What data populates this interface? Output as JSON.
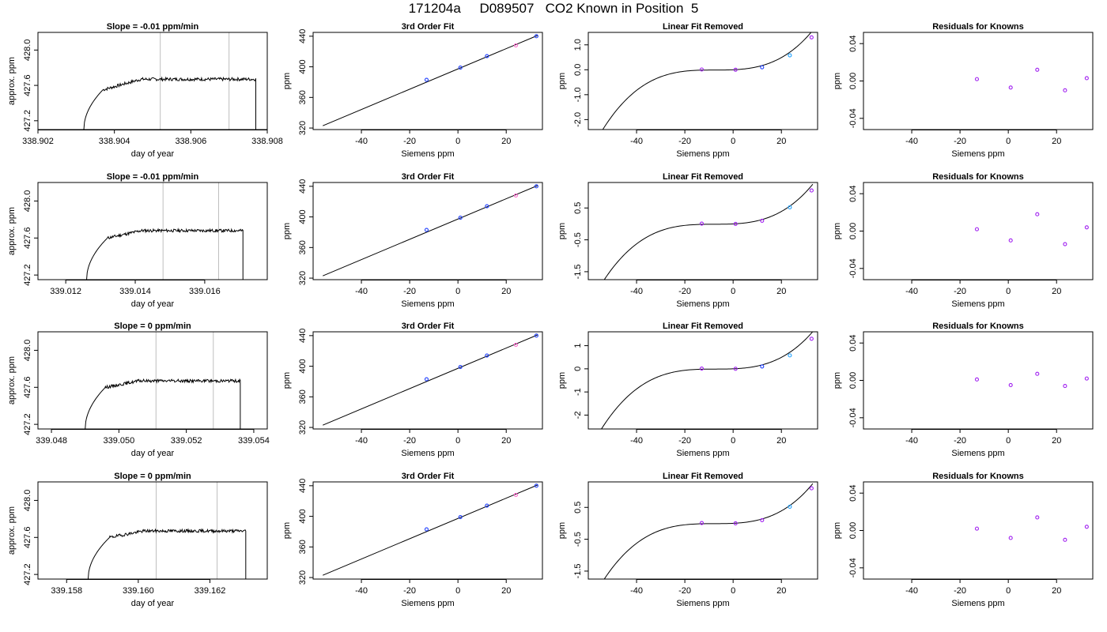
{
  "title": "171204a     D089507   CO2 Known in Position  5",
  "colors": {
    "point_blue": "#1f3fff",
    "point_purple": "#a020f0",
    "point_cyan": "#1ea0ff",
    "point_pink": "#ff66cc",
    "vline": "#bebebe",
    "line": "#000000"
  },
  "chart_data": [
    {
      "row": 0,
      "col": 0,
      "type": "line",
      "title": "Slope =  -0.01  ppm/min",
      "xlabel": "day of year",
      "ylabel": "approx. ppm",
      "xlim": [
        338.902,
        338.908
      ],
      "ylim": [
        427.1,
        428.2
      ],
      "xticks": [
        338.902,
        338.904,
        338.906,
        338.908
      ],
      "xtick_labels": [
        "338.902",
        "338.904",
        "338.906",
        "338.908"
      ],
      "yticks": [
        427.2,
        427.6,
        428.0
      ],
      "ytick_labels": [
        "427.2",
        "427.6",
        "428.0"
      ],
      "vlines": [
        338.9052,
        338.907
      ],
      "trace": {
        "start": 338.9032,
        "rise_end": 338.9037,
        "base": 427.1,
        "plateau_start": 427.55,
        "level": 427.67,
        "noise": 0.018,
        "end": 338.9077
      },
      "legend": false
    },
    {
      "row": 0,
      "col": 1,
      "type": "scatter",
      "title": "3rd Order Fit",
      "xlabel": "Siemens ppm",
      "ylabel": "ppm",
      "xlim": [
        -60,
        35
      ],
      "ylim": [
        318,
        445
      ],
      "xticks": [
        -40,
        -20,
        0,
        20
      ],
      "xtick_labels": [
        "-40",
        "-20",
        "0",
        "20"
      ],
      "yticks": [
        320,
        360,
        400,
        440
      ],
      "ytick_labels": [
        "320",
        "360",
        "400",
        "440"
      ],
      "curve": {
        "type": "linear",
        "x": [
          -56,
          33
        ],
        "y": [
          323,
          441
        ]
      },
      "points": [
        {
          "x": -13,
          "y": 383,
          "color": "point_blue"
        },
        {
          "x": 1,
          "y": 399,
          "color": "point_blue"
        },
        {
          "x": 12,
          "y": 414,
          "color": "point_blue"
        },
        {
          "x": 24,
          "y": 428,
          "color": "point_pink"
        },
        {
          "x": 32.5,
          "y": 440,
          "color": "point_blue"
        }
      ]
    },
    {
      "row": 0,
      "col": 2,
      "type": "scatter",
      "title": "Linear Fit Removed",
      "xlabel": "Siemens ppm",
      "ylabel": "ppm",
      "xlim": [
        -60,
        35
      ],
      "ylim": [
        -2.4,
        1.5
      ],
      "xticks": [
        -40,
        -20,
        0,
        20
      ],
      "xtick_labels": [
        "-40",
        "-20",
        "0",
        "20"
      ],
      "yticks": [
        -2.0,
        -1.0,
        0.0,
        1.0
      ],
      "ytick_labels": [
        "-2.0",
        "-1.0",
        "0.0",
        "1.0"
      ],
      "curve": {
        "type": "cubic",
        "x0": -56,
        "x1": 33,
        "coef": [
          0,
          0.0042,
          0.00054,
          2.38e-05
        ]
      },
      "points": [
        {
          "x": -13,
          "y": 0.01,
          "color": "point_purple"
        },
        {
          "x": 1,
          "y": 0.0,
          "color": "point_purple"
        },
        {
          "x": 12,
          "y": 0.1,
          "color": "point_blue"
        },
        {
          "x": 23.5,
          "y": 0.58,
          "color": "point_cyan"
        },
        {
          "x": 32.5,
          "y": 1.3,
          "color": "point_purple"
        }
      ]
    },
    {
      "row": 0,
      "col": 3,
      "type": "scatter",
      "title": "Residuals for Knowns",
      "xlabel": "Siemens ppm",
      "ylabel": "ppm",
      "xlim": [
        -60,
        35
      ],
      "ylim": [
        -0.052,
        0.052
      ],
      "xticks": [
        -40,
        -20,
        0,
        20
      ],
      "xtick_labels": [
        "-40",
        "-20",
        "0",
        "20"
      ],
      "yticks": [
        -0.04,
        0.0,
        0.04
      ],
      "ytick_labels": [
        "-0.04",
        "0.00",
        "0.04"
      ],
      "points": [
        {
          "x": -13,
          "y": 0.002,
          "color": "point_purple"
        },
        {
          "x": 1,
          "y": -0.007,
          "color": "point_purple"
        },
        {
          "x": 12,
          "y": 0.012,
          "color": "point_purple"
        },
        {
          "x": 23.5,
          "y": -0.01,
          "color": "point_purple"
        },
        {
          "x": 32.5,
          "y": 0.003,
          "color": "point_purple"
        }
      ]
    },
    {
      "row": 1,
      "col": 0,
      "type": "line",
      "title": "Slope =  -0.01  ppm/min",
      "xlabel": "day of year",
      "ylabel": "approx. ppm",
      "xlim": [
        339.0112,
        339.0178
      ],
      "ylim": [
        427.15,
        428.2
      ],
      "xticks": [
        339.012,
        339.014,
        339.016
      ],
      "xtick_labels": [
        "339.012",
        "339.014",
        "339.016"
      ],
      "yticks": [
        427.2,
        427.6,
        428.0
      ],
      "ytick_labels": [
        "427.2",
        "427.6",
        "428.0"
      ],
      "vlines": [
        339.0148,
        339.0164
      ],
      "trace": {
        "start": 339.0126,
        "rise_end": 339.0132,
        "base": 427.15,
        "plateau_start": 427.6,
        "level": 427.68,
        "noise": 0.016,
        "end": 339.0171
      },
      "legend": false
    },
    {
      "row": 1,
      "col": 1,
      "type": "scatter",
      "title": "3rd Order Fit",
      "xlabel": "Siemens ppm",
      "ylabel": "ppm",
      "xlim": [
        -60,
        35
      ],
      "ylim": [
        318,
        445
      ],
      "xticks": [
        -40,
        -20,
        0,
        20
      ],
      "xtick_labels": [
        "-40",
        "-20",
        "0",
        "20"
      ],
      "yticks": [
        320,
        360,
        400,
        440
      ],
      "ytick_labels": [
        "320",
        "360",
        "400",
        "440"
      ],
      "curve": {
        "type": "linear",
        "x": [
          -56,
          33
        ],
        "y": [
          323,
          441
        ]
      },
      "points": [
        {
          "x": -13,
          "y": 383,
          "color": "point_blue"
        },
        {
          "x": 1,
          "y": 399,
          "color": "point_blue"
        },
        {
          "x": 12,
          "y": 414,
          "color": "point_blue"
        },
        {
          "x": 24,
          "y": 428,
          "color": "point_pink"
        },
        {
          "x": 32.5,
          "y": 440,
          "color": "point_blue"
        }
      ]
    },
    {
      "row": 1,
      "col": 2,
      "type": "scatter",
      "title": "Linear Fit Removed",
      "xlabel": "Siemens ppm",
      "ylabel": "ppm",
      "xlim": [
        -60,
        35
      ],
      "ylim": [
        -1.75,
        1.3
      ],
      "xticks": [
        -40,
        -20,
        0,
        20
      ],
      "xtick_labels": [
        "-40",
        "-20",
        "0",
        "20"
      ],
      "yticks": [
        -1.5,
        -0.5,
        0.5
      ],
      "ytick_labels": [
        "-1.5",
        "-0.5",
        "0.5"
      ],
      "curve": {
        "type": "cubic",
        "x0": -56,
        "x1": 33,
        "coef": [
          0,
          0.0036,
          0.00043,
          1.83e-05
        ]
      },
      "points": [
        {
          "x": -13,
          "y": 0.01,
          "color": "point_purple"
        },
        {
          "x": 1,
          "y": 0.0,
          "color": "point_purple"
        },
        {
          "x": 12,
          "y": 0.1,
          "color": "point_purple"
        },
        {
          "x": 23.5,
          "y": 0.52,
          "color": "point_cyan"
        },
        {
          "x": 32.5,
          "y": 1.05,
          "color": "point_purple"
        }
      ]
    },
    {
      "row": 1,
      "col": 3,
      "type": "scatter",
      "title": "Residuals for Knowns",
      "xlabel": "Siemens ppm",
      "ylabel": "ppm",
      "xlim": [
        -60,
        35
      ],
      "ylim": [
        -0.052,
        0.052
      ],
      "xticks": [
        -40,
        -20,
        0,
        20
      ],
      "xtick_labels": [
        "-40",
        "-20",
        "0",
        "20"
      ],
      "yticks": [
        -0.04,
        0.0,
        0.04
      ],
      "ytick_labels": [
        "-0.04",
        "0.00",
        "0.04"
      ],
      "points": [
        {
          "x": -13,
          "y": 0.002,
          "color": "point_purple"
        },
        {
          "x": 1,
          "y": -0.01,
          "color": "point_purple"
        },
        {
          "x": 12,
          "y": 0.018,
          "color": "point_purple"
        },
        {
          "x": 23.5,
          "y": -0.014,
          "color": "point_purple"
        },
        {
          "x": 32.5,
          "y": 0.004,
          "color": "point_purple"
        }
      ]
    },
    {
      "row": 2,
      "col": 0,
      "type": "line",
      "title": "Slope =  0  ppm/min",
      "xlabel": "day of year",
      "ylabel": "approx. ppm",
      "xlim": [
        339.0476,
        339.0544
      ],
      "ylim": [
        427.15,
        428.2
      ],
      "xticks": [
        339.048,
        339.05,
        339.052,
        339.054
      ],
      "xtick_labels": [
        "339.048",
        "339.050",
        "339.052",
        "339.054"
      ],
      "yticks": [
        427.2,
        427.6,
        428.0
      ],
      "ytick_labels": [
        "427.2",
        "427.6",
        "428.0"
      ],
      "vlines": [
        339.0511,
        339.0528
      ],
      "trace": {
        "start": 339.049,
        "rise_end": 339.0496,
        "base": 427.15,
        "plateau_start": 427.6,
        "level": 427.67,
        "noise": 0.016,
        "end": 339.0536
      },
      "legend": false
    },
    {
      "row": 2,
      "col": 1,
      "type": "scatter",
      "title": "3rd Order Fit",
      "xlabel": "Siemens ppm",
      "ylabel": "ppm",
      "xlim": [
        -60,
        35
      ],
      "ylim": [
        318,
        445
      ],
      "xticks": [
        -40,
        -20,
        0,
        20
      ],
      "xtick_labels": [
        "-40",
        "-20",
        "0",
        "20"
      ],
      "yticks": [
        320,
        360,
        400,
        440
      ],
      "ytick_labels": [
        "320",
        "360",
        "400",
        "440"
      ],
      "curve": {
        "type": "linear",
        "x": [
          -56,
          33
        ],
        "y": [
          323,
          441
        ]
      },
      "points": [
        {
          "x": -13,
          "y": 383,
          "color": "point_blue"
        },
        {
          "x": 1,
          "y": 399,
          "color": "point_blue"
        },
        {
          "x": 12,
          "y": 414,
          "color": "point_blue"
        },
        {
          "x": 24,
          "y": 428,
          "color": "point_pink"
        },
        {
          "x": 32.5,
          "y": 440,
          "color": "point_blue"
        }
      ]
    },
    {
      "row": 2,
      "col": 2,
      "type": "scatter",
      "title": "Linear Fit Removed",
      "xlabel": "Siemens ppm",
      "ylabel": "ppm",
      "xlim": [
        -60,
        35
      ],
      "ylim": [
        -2.6,
        1.6
      ],
      "xticks": [
        -40,
        -20,
        0,
        20
      ],
      "xtick_labels": [
        "-40",
        "-20",
        "0",
        "20"
      ],
      "yticks": [
        -2,
        -1,
        0,
        1
      ],
      "ytick_labels": [
        "-2",
        "-1",
        "0",
        "1"
      ],
      "curve": {
        "type": "cubic",
        "x0": -56,
        "x1": 33,
        "coef": [
          0,
          0.0042,
          0.00054,
          2.45e-05
        ]
      },
      "points": [
        {
          "x": -13,
          "y": 0.01,
          "color": "point_purple"
        },
        {
          "x": 1,
          "y": 0.0,
          "color": "point_purple"
        },
        {
          "x": 12,
          "y": 0.1,
          "color": "point_blue"
        },
        {
          "x": 23.5,
          "y": 0.58,
          "color": "point_cyan"
        },
        {
          "x": 32.5,
          "y": 1.3,
          "color": "point_purple"
        }
      ]
    },
    {
      "row": 2,
      "col": 3,
      "type": "scatter",
      "title": "Residuals for Knowns",
      "xlabel": "Siemens ppm",
      "ylabel": "ppm",
      "xlim": [
        -60,
        35
      ],
      "ylim": [
        -0.052,
        0.052
      ],
      "xticks": [
        -40,
        -20,
        0,
        20
      ],
      "xtick_labels": [
        "-40",
        "-20",
        "0",
        "20"
      ],
      "yticks": [
        -0.04,
        0.0,
        0.04
      ],
      "ytick_labels": [
        "-0.04",
        "0.00",
        "0.04"
      ],
      "points": [
        {
          "x": -13,
          "y": 0.001,
          "color": "point_purple"
        },
        {
          "x": 1,
          "y": -0.005,
          "color": "point_purple"
        },
        {
          "x": 12,
          "y": 0.007,
          "color": "point_purple"
        },
        {
          "x": 23.5,
          "y": -0.006,
          "color": "point_purple"
        },
        {
          "x": 32.5,
          "y": 0.002,
          "color": "point_purple"
        }
      ]
    },
    {
      "row": 3,
      "col": 0,
      "type": "line",
      "title": "Slope =  0  ppm/min",
      "xlabel": "day of year",
      "ylabel": "approx. ppm",
      "xlim": [
        339.1572,
        339.1636
      ],
      "ylim": [
        427.15,
        428.2
      ],
      "xticks": [
        339.158,
        339.16,
        339.162
      ],
      "xtick_labels": [
        "339.158",
        "339.160",
        "339.162"
      ],
      "yticks": [
        427.2,
        427.6,
        428.0
      ],
      "ytick_labels": [
        "427.2",
        "427.6",
        "428.0"
      ],
      "vlines": [
        339.1605,
        339.1622
      ],
      "trace": {
        "start": 339.1586,
        "rise_end": 339.1592,
        "base": 427.15,
        "plateau_start": 427.6,
        "level": 427.67,
        "noise": 0.016,
        "end": 339.163
      },
      "legend": false
    },
    {
      "row": 3,
      "col": 1,
      "type": "scatter",
      "title": "3rd Order Fit",
      "xlabel": "Siemens ppm",
      "ylabel": "ppm",
      "xlim": [
        -60,
        35
      ],
      "ylim": [
        318,
        445
      ],
      "xticks": [
        -40,
        -20,
        0,
        20
      ],
      "xtick_labels": [
        "-40",
        "-20",
        "0",
        "20"
      ],
      "yticks": [
        320,
        360,
        400,
        440
      ],
      "ytick_labels": [
        "320",
        "360",
        "400",
        "440"
      ],
      "curve": {
        "type": "linear",
        "x": [
          -56,
          33
        ],
        "y": [
          323,
          441
        ]
      },
      "points": [
        {
          "x": -13,
          "y": 383,
          "color": "point_blue"
        },
        {
          "x": 1,
          "y": 399,
          "color": "point_blue"
        },
        {
          "x": 12,
          "y": 414,
          "color": "point_blue"
        },
        {
          "x": 24,
          "y": 428,
          "color": "point_pink"
        },
        {
          "x": 32.5,
          "y": 440,
          "color": "point_blue"
        }
      ]
    },
    {
      "row": 3,
      "col": 2,
      "type": "scatter",
      "title": "Linear Fit Removed",
      "xlabel": "Siemens ppm",
      "ylabel": "ppm",
      "xlim": [
        -60,
        35
      ],
      "ylim": [
        -1.75,
        1.3
      ],
      "xticks": [
        -40,
        -20,
        0,
        20
      ],
      "xtick_labels": [
        "-40",
        "-20",
        "0",
        "20"
      ],
      "yticks": [
        -1.5,
        -0.5,
        0.5
      ],
      "ytick_labels": [
        "-1.5",
        "-0.5",
        "0.5"
      ],
      "curve": {
        "type": "cubic",
        "x0": -56,
        "x1": 33,
        "coef": [
          0,
          0.0036,
          0.00043,
          1.83e-05
        ]
      },
      "points": [
        {
          "x": -13,
          "y": 0.01,
          "color": "point_purple"
        },
        {
          "x": 1,
          "y": 0.0,
          "color": "point_purple"
        },
        {
          "x": 12,
          "y": 0.1,
          "color": "point_purple"
        },
        {
          "x": 23.5,
          "y": 0.52,
          "color": "point_cyan"
        },
        {
          "x": 32.5,
          "y": 1.1,
          "color": "point_purple"
        }
      ]
    },
    {
      "row": 3,
      "col": 3,
      "type": "scatter",
      "title": "Residuals for Knowns",
      "xlabel": "Siemens ppm",
      "ylabel": "ppm",
      "xlim": [
        -60,
        35
      ],
      "ylim": [
        -0.052,
        0.052
      ],
      "xticks": [
        -40,
        -20,
        0,
        20
      ],
      "xtick_labels": [
        "-40",
        "-20",
        "0",
        "20"
      ],
      "yticks": [
        -0.04,
        0.0,
        0.04
      ],
      "ytick_labels": [
        "-0.04",
        "0.00",
        "0.04"
      ],
      "points": [
        {
          "x": -13,
          "y": 0.002,
          "color": "point_purple"
        },
        {
          "x": 1,
          "y": -0.008,
          "color": "point_purple"
        },
        {
          "x": 12,
          "y": 0.014,
          "color": "point_purple"
        },
        {
          "x": 23.5,
          "y": -0.01,
          "color": "point_purple"
        },
        {
          "x": 32.5,
          "y": 0.004,
          "color": "point_purple"
        }
      ]
    }
  ]
}
